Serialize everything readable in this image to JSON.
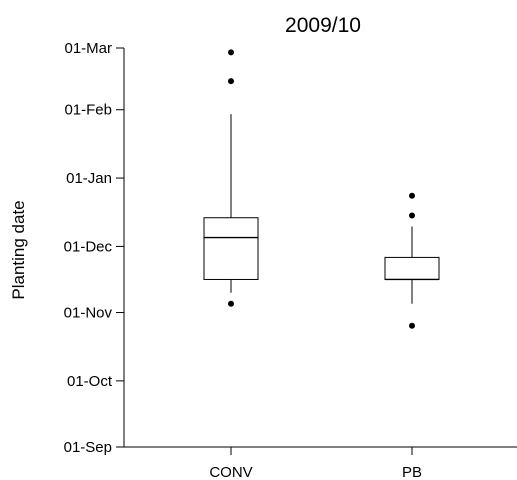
{
  "chart_data": {
    "type": "box",
    "title": "2009/10",
    "xlabel": "",
    "ylabel": "Planting date",
    "y_axis": {
      "type": "date",
      "range": [
        "2009-09-01",
        "2010-03-01"
      ],
      "ticks": [
        {
          "date": "2009-09-01",
          "label": "01-Sep"
        },
        {
          "date": "2009-10-01",
          "label": "01-Oct"
        },
        {
          "date": "2009-11-01",
          "label": "01-Nov"
        },
        {
          "date": "2009-12-01",
          "label": "01-Dec"
        },
        {
          "date": "2010-01-01",
          "label": "01-Jan"
        },
        {
          "date": "2010-02-01",
          "label": "01-Feb"
        },
        {
          "date": "2010-03-01",
          "label": "01-Mar"
        }
      ]
    },
    "grid": false,
    "legend": "none",
    "categories": [
      "CONV",
      "PB"
    ],
    "boxes": [
      {
        "category": "CONV",
        "whisker_low": "2009-11-10",
        "q1": "2009-11-16",
        "median": "2009-12-05",
        "q3": "2009-12-14",
        "whisker_high": "2010-01-30",
        "outliers": [
          "2009-11-05",
          "2010-02-14",
          "2010-02-27"
        ]
      },
      {
        "category": "PB",
        "whisker_low": "2009-11-05",
        "q1": "2009-11-16",
        "median": "2009-11-16",
        "q3": "2009-11-26",
        "whisker_high": "2009-12-10",
        "outliers": [
          "2009-10-26",
          "2009-12-15",
          "2009-12-24"
        ]
      }
    ]
  }
}
